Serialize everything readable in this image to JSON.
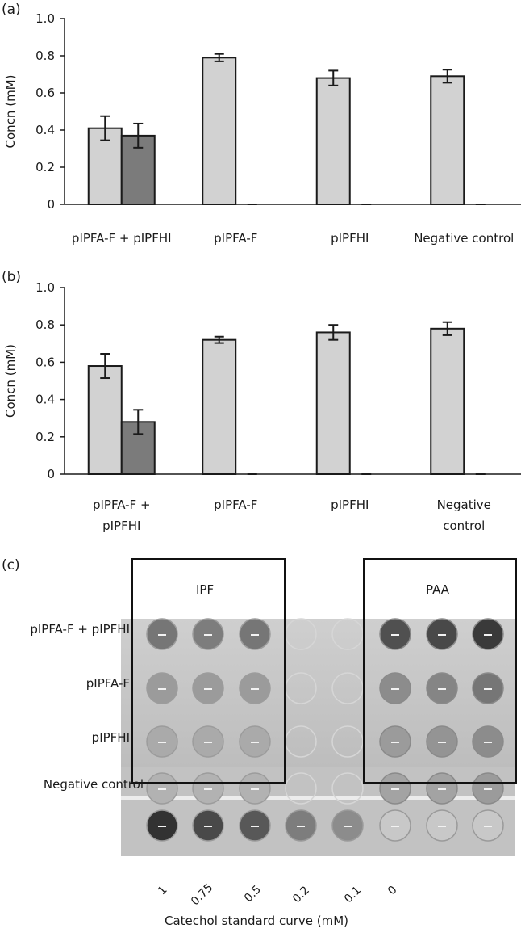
{
  "panels": {
    "a": "(a)",
    "b": "(b)",
    "c": "(c)"
  },
  "colors": {
    "light_bar": "#d2d2d2",
    "dark_bar": "#7b7b7b",
    "outline": "#1a1a1a"
  },
  "chart_data": [
    {
      "type": "bar",
      "panel": "(a)",
      "ylabel": "Concn (mM)",
      "ylim": [
        0,
        1.0
      ],
      "yticks": [
        "0",
        "0.2",
        "0.4",
        "0.6",
        "0.8",
        "1.0"
      ],
      "categories": [
        [
          "pIPFA-F + pIPFHI"
        ],
        [
          "pIPFA-F"
        ],
        [
          "pIPFHI"
        ],
        [
          "Negative control"
        ]
      ],
      "series": [
        {
          "values": [
            0.41,
            0.79,
            0.68,
            0.69
          ],
          "errors": [
            0.065,
            0.02,
            0.04,
            0.035
          ]
        },
        {
          "values": [
            0.37,
            0.0,
            0.0,
            0.0
          ],
          "errors": [
            0.065,
            0.0,
            0.0,
            0.0
          ]
        }
      ]
    },
    {
      "type": "bar",
      "panel": "(b)",
      "ylabel": "Concn (mM)",
      "ylim": [
        0,
        1.0
      ],
      "yticks": [
        "0",
        "0.2",
        "0.4",
        "0.6",
        "0.8",
        "1.0"
      ],
      "categories": [
        [
          "pIPFA-F +",
          "pIPFHI"
        ],
        [
          "pIPFA-F"
        ],
        [
          "pIPFHI"
        ],
        [
          "Negative",
          "control"
        ]
      ],
      "series": [
        {
          "values": [
            0.58,
            0.72,
            0.76,
            0.78
          ],
          "errors": [
            0.065,
            0.017,
            0.04,
            0.035
          ]
        },
        {
          "values": [
            0.28,
            0.0,
            0.0,
            0.0
          ],
          "errors": [
            0.065,
            0.0,
            0.0,
            0.0
          ]
        }
      ]
    }
  ],
  "plate": {
    "box_labels": [
      "IPF",
      "PAA"
    ],
    "row_labels": [
      "pIPFA-F + pIPFHI",
      "pIPFA-F",
      "pIPFHI",
      "Negative control"
    ],
    "standard_labels": [
      "1",
      "0.75",
      "0.5",
      "0.2",
      "0.1",
      "0"
    ],
    "xlabel": "Catechol standard curve (mM)",
    "ipf_well_shade": [
      [
        0.55,
        0.5,
        0.55
      ],
      [
        0.3,
        0.3,
        0.3
      ],
      [
        0.2,
        0.2,
        0.2
      ],
      [
        0.15,
        0.15,
        0.15
      ]
    ],
    "paa_well_shade": [
      [
        0.8,
        0.85,
        0.95
      ],
      [
        0.4,
        0.45,
        0.55
      ],
      [
        0.3,
        0.35,
        0.4
      ],
      [
        0.25,
        0.25,
        0.3
      ]
    ],
    "standard_well_shade": [
      1.0,
      0.85,
      0.75,
      0.5,
      0.4,
      0.0
    ]
  }
}
